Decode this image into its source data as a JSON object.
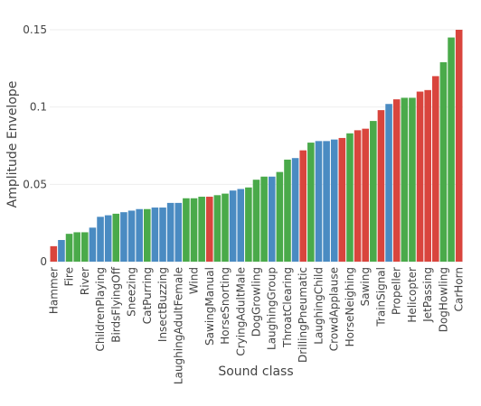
{
  "chart_data": {
    "type": "bar",
    "x_label": "Sound class",
    "y_label": "Amplitude Envelope",
    "categories": [
      "Hammer",
      null,
      "Fire",
      null,
      "River",
      null,
      "ChildrenPlaying",
      null,
      "BirdsFlyingOff",
      null,
      "Sneezing",
      null,
      "CatPurring",
      null,
      "InsectBuzzing",
      null,
      "LaughingAdultFemale",
      null,
      "Wind",
      null,
      "SawingManual",
      null,
      "HorseSnorting",
      null,
      "CryingAdultMale",
      null,
      "DogGrowling",
      null,
      "LaughingGroup",
      null,
      "ThroatClearing",
      null,
      "DrillingPneumatic",
      null,
      "LaughingChild",
      null,
      "CrowdApplause",
      null,
      "HorseNeighing",
      null,
      "Sawing",
      null,
      "TrainSignal",
      null,
      "Propeller",
      null,
      "Helicopter",
      null,
      "JetPassing",
      null,
      "DogHowling",
      null,
      "CarHorn"
    ],
    "values": [
      0.01,
      0.014,
      0.018,
      0.019,
      0.019,
      0.022,
      0.029,
      0.03,
      0.031,
      0.032,
      0.033,
      0.034,
      0.034,
      0.035,
      0.035,
      0.038,
      0.038,
      0.041,
      0.041,
      0.042,
      0.042,
      0.043,
      0.044,
      0.046,
      0.047,
      0.048,
      0.053,
      0.055,
      0.055,
      0.058,
      0.066,
      0.067,
      0.072,
      0.077,
      0.078,
      0.078,
      0.079,
      0.08,
      0.083,
      0.085,
      0.086,
      0.091,
      0.098,
      0.102,
      0.105,
      0.106,
      0.106,
      0.11,
      0.111,
      0.12,
      0.129,
      0.145,
      0.15
    ],
    "colors": [
      "#d9453d",
      "#4a8bc2",
      "#4aaa4a",
      "#4aaa4a",
      "#4aaa4a",
      "#4a8bc2",
      "#4a8bc2",
      "#4a8bc2",
      "#4aaa4a",
      "#4a8bc2",
      "#4a8bc2",
      "#4a8bc2",
      "#4aaa4a",
      "#4a8bc2",
      "#4a8bc2",
      "#4a8bc2",
      "#4a8bc2",
      "#4aaa4a",
      "#4aaa4a",
      "#4aaa4a",
      "#d9453d",
      "#4aaa4a",
      "#4aaa4a",
      "#4a8bc2",
      "#4a8bc2",
      "#4aaa4a",
      "#4aaa4a",
      "#4aaa4a",
      "#4a8bc2",
      "#4aaa4a",
      "#4aaa4a",
      "#4a8bc2",
      "#d9453d",
      "#4aaa4a",
      "#4a8bc2",
      "#4a8bc2",
      "#4a8bc2",
      "#d9453d",
      "#4aaa4a",
      "#d9453d",
      "#d9453d",
      "#4aaa4a",
      "#d9453d",
      "#4a8bc2",
      "#d9453d",
      "#4aaa4a",
      "#4aaa4a",
      "#d9453d",
      "#d9453d",
      "#d9453d",
      "#4aaa4a",
      "#4aaa4a",
      "#d9453d"
    ],
    "ylim": [
      0,
      0.15
    ],
    "yticks": [
      0,
      0.05,
      0.1,
      0.15
    ],
    "grid": true
  }
}
